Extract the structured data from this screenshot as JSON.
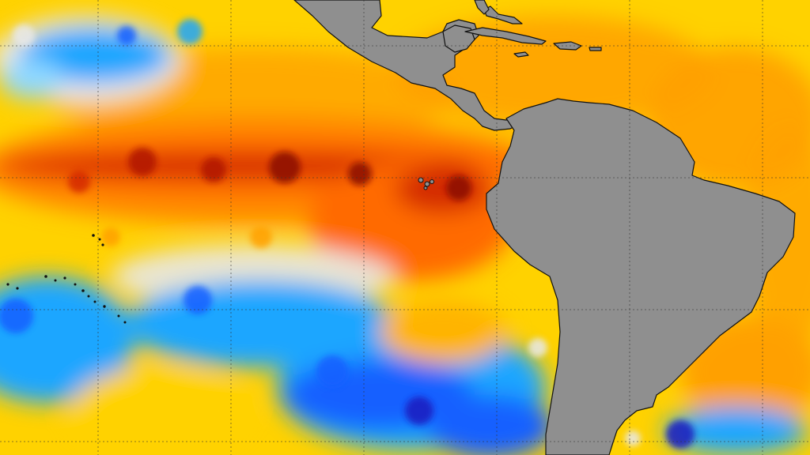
{
  "map": {
    "type": "sea-surface-temperature-anomaly",
    "land_color": "#8f8f8f",
    "coastline_color": "#111111",
    "grid_color": "#333333",
    "gridlines": true,
    "palette": {
      "deep_warm": "#8a0f00",
      "strong_warm": "#d42a00",
      "warm": "#ff6a00",
      "mild_warm": "#ffa000",
      "slight_warm": "#ffd200",
      "neutral": "#e8e8e8",
      "slight_cool": "#8fd8ff",
      "cool": "#1aa6ff",
      "strong_cool": "#1560ff",
      "deep_cool": "#1b1fbf"
    },
    "regions": [
      "north-america",
      "central-america",
      "caribbean-islands",
      "south-america",
      "galapagos-islands",
      "south-pacific-islands",
      "pacific-ocean",
      "atlantic-ocean",
      "equatorial-warm-tongue"
    ]
  }
}
